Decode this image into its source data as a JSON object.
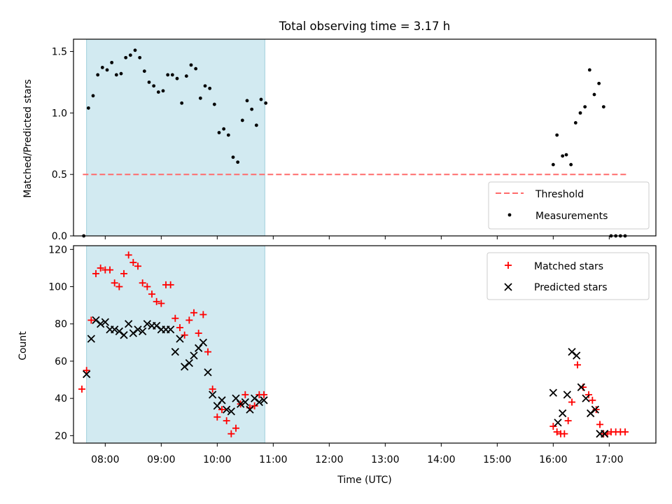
{
  "chart_data": [
    {
      "type": "scatter",
      "title": "Total observing time = 3.17 h",
      "xlabel": "",
      "ylabel": "Matched/Predicted stars",
      "xlim": [
        "07:26",
        "17:50"
      ],
      "ylim": [
        0,
        1.6
      ],
      "yticks": [
        0.0,
        0.5,
        1.0,
        1.5
      ],
      "ytick_labels": [
        "0.0",
        "0.5",
        "1.0",
        "1.5"
      ],
      "grid": false,
      "legend_position": "lower-right",
      "shaded_span": [
        "07:40",
        "10:51"
      ],
      "shade_color": "#add8e6",
      "threshold": {
        "name": "Threshold",
        "value": 0.5,
        "x_range": [
          "07:36",
          "17:21"
        ],
        "color": "#ff6b6b",
        "style": "dashed"
      },
      "series": [
        {
          "name": "Measurements",
          "marker": "dot",
          "color": "#000000",
          "points": [
            [
              "07:37",
              0.0
            ],
            [
              "07:42",
              1.04
            ],
            [
              "07:47",
              1.14
            ],
            [
              "07:52",
              1.31
            ],
            [
              "07:57",
              1.37
            ],
            [
              "08:02",
              1.35
            ],
            [
              "08:07",
              1.41
            ],
            [
              "08:12",
              1.31
            ],
            [
              "08:17",
              1.32
            ],
            [
              "08:22",
              1.45
            ],
            [
              "08:27",
              1.47
            ],
            [
              "08:32",
              1.51
            ],
            [
              "08:37",
              1.45
            ],
            [
              "08:42",
              1.34
            ],
            [
              "08:47",
              1.25
            ],
            [
              "08:52",
              1.22
            ],
            [
              "08:57",
              1.17
            ],
            [
              "09:02",
              1.18
            ],
            [
              "09:07",
              1.31
            ],
            [
              "09:12",
              1.31
            ],
            [
              "09:17",
              1.28
            ],
            [
              "09:22",
              1.08
            ],
            [
              "09:27",
              1.3
            ],
            [
              "09:32",
              1.39
            ],
            [
              "09:37",
              1.36
            ],
            [
              "09:42",
              1.12
            ],
            [
              "09:47",
              1.22
            ],
            [
              "09:52",
              1.2
            ],
            [
              "09:57",
              1.07
            ],
            [
              "10:02",
              0.84
            ],
            [
              "10:07",
              0.87
            ],
            [
              "10:12",
              0.82
            ],
            [
              "10:17",
              0.64
            ],
            [
              "10:22",
              0.6
            ],
            [
              "10:27",
              0.94
            ],
            [
              "10:32",
              1.1
            ],
            [
              "10:37",
              1.03
            ],
            [
              "10:42",
              0.9
            ],
            [
              "10:47",
              1.11
            ],
            [
              "10:52",
              1.08
            ],
            [
              "16:00",
              0.58
            ],
            [
              "16:04",
              0.82
            ],
            [
              "16:10",
              0.65
            ],
            [
              "16:14",
              0.66
            ],
            [
              "16:19",
              0.58
            ],
            [
              "16:24",
              0.92
            ],
            [
              "16:29",
              1.0
            ],
            [
              "16:34",
              1.05
            ],
            [
              "16:39",
              1.35
            ],
            [
              "16:44",
              1.15
            ],
            [
              "16:49",
              1.24
            ],
            [
              "16:54",
              1.05
            ],
            [
              "17:02",
              0.0
            ],
            [
              "17:07",
              0.0
            ],
            [
              "17:12",
              0.0
            ],
            [
              "17:17",
              0.0
            ]
          ]
        }
      ],
      "legend": [
        "Threshold",
        "Measurements"
      ]
    },
    {
      "type": "scatter",
      "title": "",
      "xlabel": "Time (UTC)",
      "ylabel": "Count",
      "xlim": [
        "07:26",
        "17:50"
      ],
      "xticks": [
        "08:00",
        "09:00",
        "10:00",
        "11:00",
        "12:00",
        "13:00",
        "14:00",
        "15:00",
        "16:00",
        "17:00"
      ],
      "ylim": [
        16,
        122
      ],
      "yticks": [
        20,
        40,
        60,
        80,
        100,
        120
      ],
      "ytick_labels": [
        "20",
        "40",
        "60",
        "80",
        "100",
        "120"
      ],
      "grid": false,
      "legend_position": "upper-right",
      "shaded_span": [
        "07:40",
        "10:51"
      ],
      "shade_color": "#add8e6",
      "series": [
        {
          "name": "Matched stars",
          "marker": "plus",
          "color": "#ff0000",
          "points": [
            [
              "07:35",
              45
            ],
            [
              "07:40",
              55
            ],
            [
              "07:45",
              82
            ],
            [
              "07:50",
              107
            ],
            [
              "07:55",
              110
            ],
            [
              "08:00",
              109
            ],
            [
              "08:05",
              109
            ],
            [
              "08:10",
              102
            ],
            [
              "08:15",
              100
            ],
            [
              "08:20",
              107
            ],
            [
              "08:25",
              117
            ],
            [
              "08:30",
              113
            ],
            [
              "08:35",
              111
            ],
            [
              "08:40",
              102
            ],
            [
              "08:45",
              100
            ],
            [
              "08:50",
              96
            ],
            [
              "08:55",
              92
            ],
            [
              "09:00",
              91
            ],
            [
              "09:05",
              101
            ],
            [
              "09:10",
              101
            ],
            [
              "09:15",
              83
            ],
            [
              "09:20",
              78
            ],
            [
              "09:25",
              74
            ],
            [
              "09:30",
              82
            ],
            [
              "09:35",
              86
            ],
            [
              "09:40",
              75
            ],
            [
              "09:45",
              85
            ],
            [
              "09:50",
              65
            ],
            [
              "09:55",
              45
            ],
            [
              "10:00",
              30
            ],
            [
              "10:05",
              34
            ],
            [
              "10:10",
              28
            ],
            [
              "10:15",
              21
            ],
            [
              "10:20",
              24
            ],
            [
              "10:25",
              37
            ],
            [
              "10:30",
              42
            ],
            [
              "10:35",
              35
            ],
            [
              "10:40",
              36
            ],
            [
              "10:45",
              42
            ],
            [
              "10:50",
              42
            ],
            [
              "16:00",
              25
            ],
            [
              "16:04",
              22
            ],
            [
              "16:08",
              21
            ],
            [
              "16:12",
              21
            ],
            [
              "16:16",
              28
            ],
            [
              "16:20",
              38
            ],
            [
              "16:26",
              58
            ],
            [
              "16:32",
              46
            ],
            [
              "16:38",
              42
            ],
            [
              "16:42",
              39
            ],
            [
              "16:46",
              34
            ],
            [
              "16:50",
              26
            ],
            [
              "16:54",
              21
            ],
            [
              "16:58",
              21
            ],
            [
              "17:02",
              22
            ],
            [
              "17:07",
              22
            ],
            [
              "17:12",
              22
            ],
            [
              "17:17",
              22
            ]
          ]
        },
        {
          "name": "Predicted stars",
          "marker": "x",
          "color": "#000000",
          "points": [
            [
              "07:40",
              53
            ],
            [
              "07:45",
              72
            ],
            [
              "07:50",
              82
            ],
            [
              "07:55",
              80
            ],
            [
              "08:00",
              81
            ],
            [
              "08:05",
              77
            ],
            [
              "08:10",
              77
            ],
            [
              "08:15",
              76
            ],
            [
              "08:20",
              74
            ],
            [
              "08:25",
              80
            ],
            [
              "08:30",
              75
            ],
            [
              "08:35",
              77
            ],
            [
              "08:40",
              76
            ],
            [
              "08:45",
              80
            ],
            [
              "08:50",
              79
            ],
            [
              "08:55",
              79
            ],
            [
              "09:00",
              77
            ],
            [
              "09:05",
              77
            ],
            [
              "09:10",
              77
            ],
            [
              "09:15",
              65
            ],
            [
              "09:20",
              72
            ],
            [
              "09:25",
              57
            ],
            [
              "09:30",
              59
            ],
            [
              "09:35",
              63
            ],
            [
              "09:40",
              67
            ],
            [
              "09:45",
              70
            ],
            [
              "09:50",
              54
            ],
            [
              "09:55",
              42
            ],
            [
              "10:00",
              36
            ],
            [
              "10:05",
              39
            ],
            [
              "10:10",
              34
            ],
            [
              "10:15",
              33
            ],
            [
              "10:20",
              40
            ],
            [
              "10:25",
              37
            ],
            [
              "10:30",
              38
            ],
            [
              "10:35",
              34
            ],
            [
              "10:40",
              40
            ],
            [
              "10:45",
              38
            ],
            [
              "10:50",
              39
            ],
            [
              "16:00",
              43
            ],
            [
              "16:05",
              27
            ],
            [
              "16:10",
              32
            ],
            [
              "16:15",
              42
            ],
            [
              "16:20",
              65
            ],
            [
              "16:25",
              63
            ],
            [
              "16:30",
              46
            ],
            [
              "16:35",
              40
            ],
            [
              "16:40",
              32
            ],
            [
              "16:45",
              34
            ],
            [
              "16:50",
              21
            ],
            [
              "16:55",
              21
            ]
          ]
        }
      ],
      "legend": [
        "Matched stars",
        "Predicted stars"
      ]
    }
  ]
}
